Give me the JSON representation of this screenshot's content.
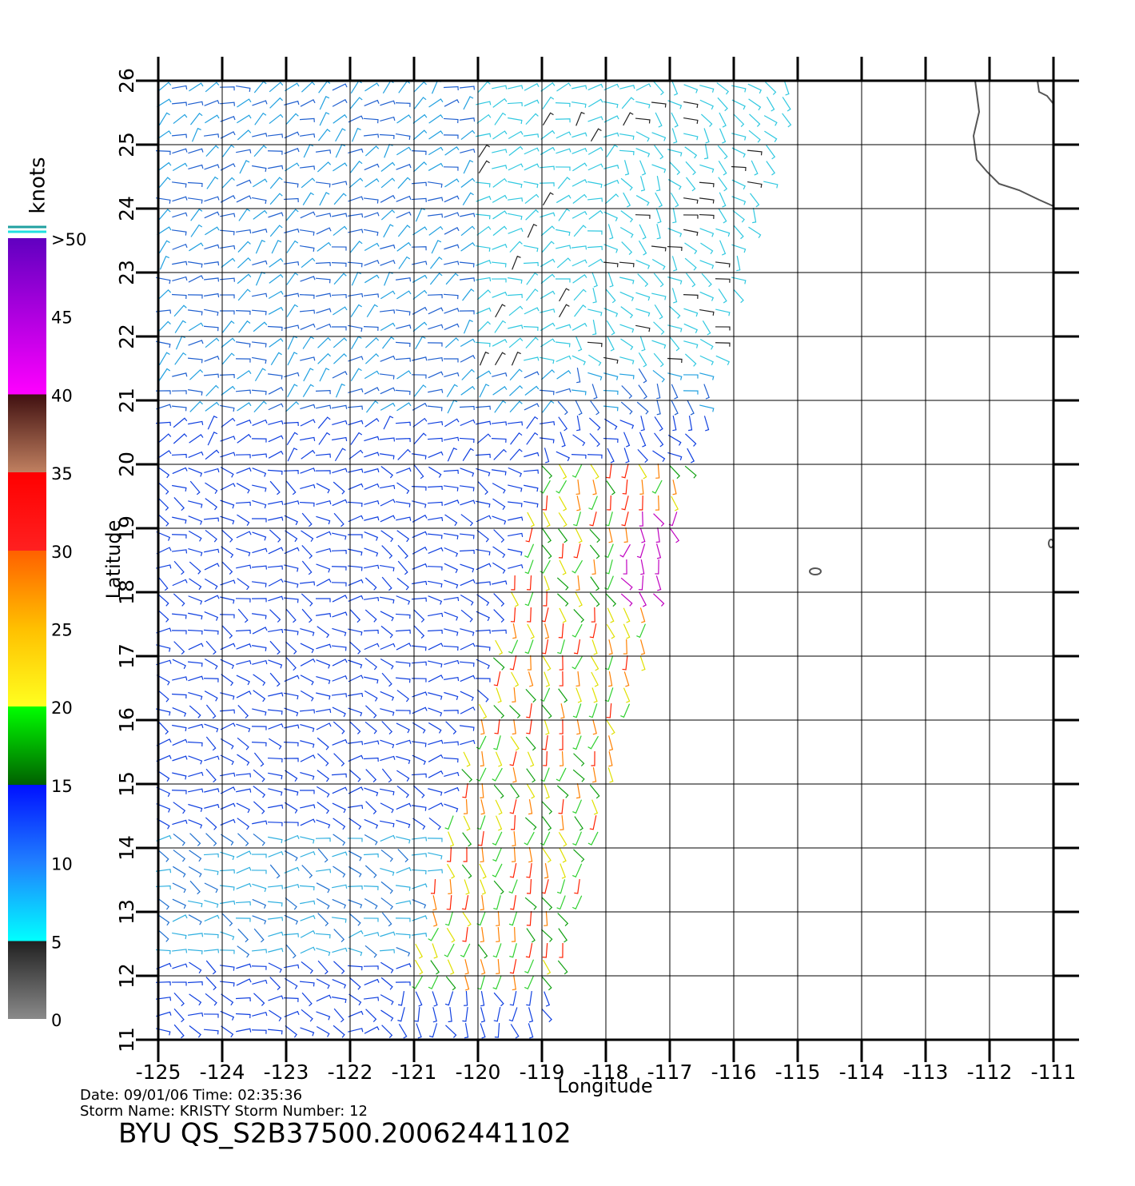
{
  "chart_data": {
    "type": "vector",
    "xlabel": "Longitude",
    "ylabel": "Latitude",
    "xlim": [
      -125,
      -111
    ],
    "ylim": [
      11,
      26
    ],
    "xticks": [
      -125,
      -124,
      -123,
      -122,
      -121,
      -120,
      -119,
      -118,
      -117,
      -116,
      -115,
      -114,
      -113,
      -112,
      -111
    ],
    "yticks": [
      11,
      12,
      13,
      14,
      15,
      16,
      17,
      18,
      19,
      20,
      21,
      22,
      23,
      24,
      25,
      26
    ],
    "grid": true,
    "colorbar": {
      "title": "knots",
      "lim": [
        0,
        50
      ],
      "ticks": [
        0,
        5,
        10,
        15,
        20,
        25,
        30,
        35,
        40,
        45,
        {
          "value": 50,
          "label": ">50"
        }
      ]
    },
    "footer": [
      "Date: 09/01/06   Time: 02:35:36",
      "Storm  Name: KRISTY    Storm  Number: 12",
      "BYU  QS_S2B37500.20062441102"
    ]
  }
}
